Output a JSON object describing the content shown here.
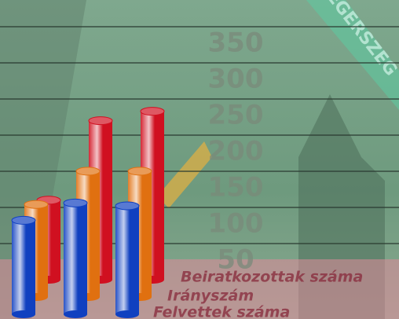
{
  "chart_data": {
    "type": "cylinder-bar",
    "background_text": "AEGERSZEG",
    "categories": [
      null,
      null,
      null
    ],
    "series": [
      {
        "name": "Beiratkozottak száma",
        "color": "#d01020",
        "values": [
          110,
          220,
          233
        ]
      },
      {
        "name": "Irányszám",
        "color": "#e07010",
        "values": [
          128,
          174,
          174
        ]
      },
      {
        "name": "Felvettek száma",
        "color": "#1040c0",
        "values": [
          130,
          154,
          150
        ]
      }
    ],
    "ylim": [
      0,
      400
    ],
    "yticks": [
      50,
      100,
      150,
      200,
      250,
      300,
      350
    ],
    "grid": true
  }
}
